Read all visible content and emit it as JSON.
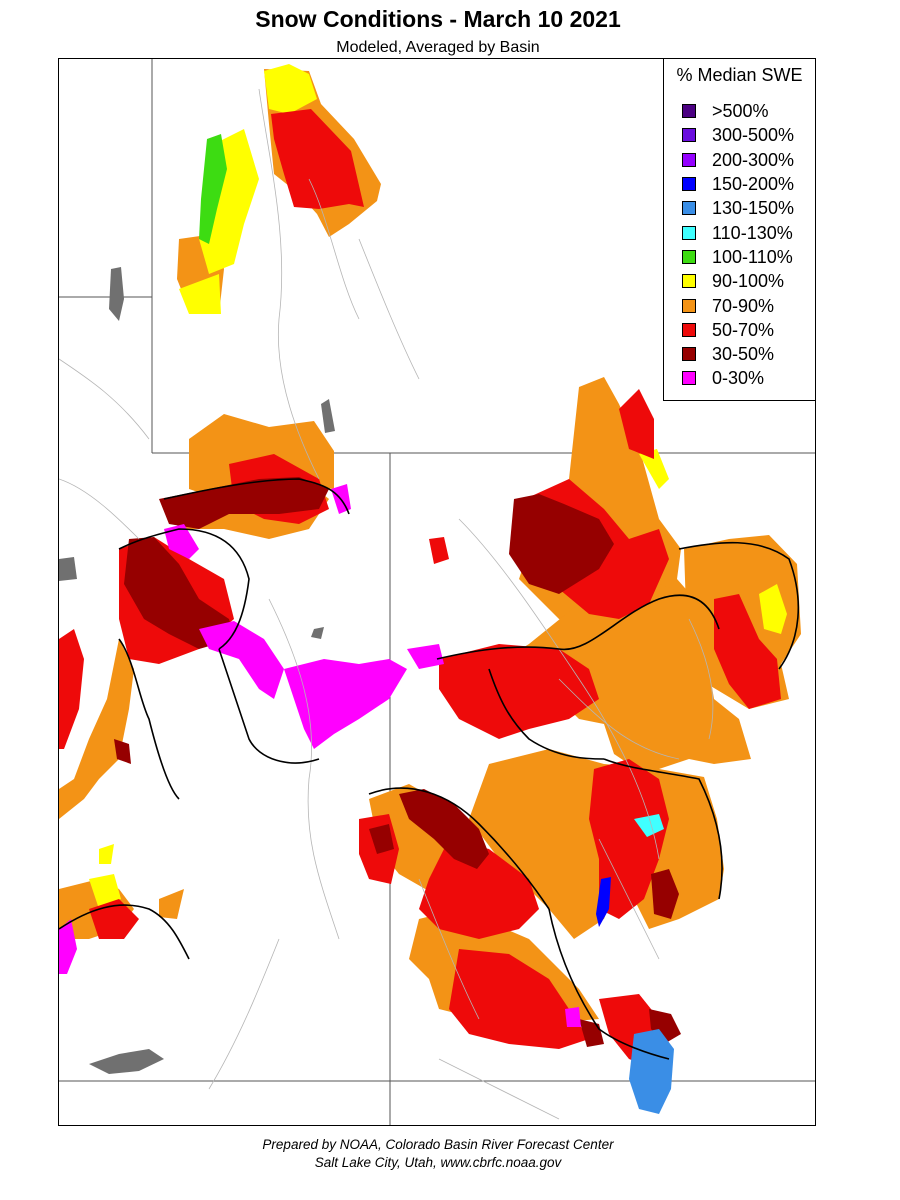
{
  "header": {
    "title": "Snow Conditions - March 10 2021",
    "subtitle": "Modeled, Averaged by Basin"
  },
  "legend": {
    "title": "% Median SWE",
    "items": [
      {
        "label": ">500%",
        "color": "#4b0082"
      },
      {
        "label": "300-500%",
        "color": "#6a0dde"
      },
      {
        "label": "200-300%",
        "color": "#9400ff"
      },
      {
        "label": "150-200%",
        "color": "#0000ff"
      },
      {
        "label": "130-150%",
        "color": "#3a8ee6"
      },
      {
        "label": "110-130%",
        "color": "#40ffff"
      },
      {
        "label": "100-110%",
        "color": "#3ddc12"
      },
      {
        "label": "90-100%",
        "color": "#ffff00"
      },
      {
        "label": "70-90%",
        "color": "#f39316"
      },
      {
        "label": "50-70%",
        "color": "#ee0a0a"
      },
      {
        "label": "30-50%",
        "color": "#960000"
      },
      {
        "label": "0-30%",
        "color": "#ff00ff"
      }
    ]
  },
  "footer": {
    "line1": "Prepared by NOAA, Colorado Basin River Forecast Center",
    "line2": "Salt Lake City, Utah, www.cbrfc.noaa.gov"
  }
}
